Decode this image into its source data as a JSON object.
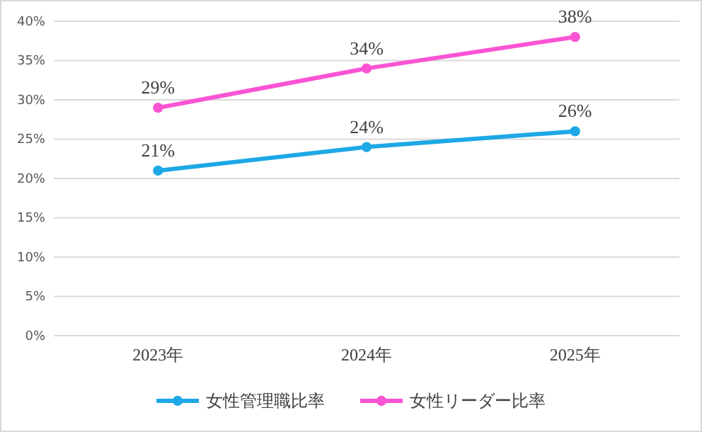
{
  "chart_data": {
    "type": "line",
    "categories": [
      "2023年",
      "2024年",
      "2025年"
    ],
    "series": [
      {
        "name": "女性管理職比率",
        "color": "#1ea8e6",
        "values": [
          21,
          24,
          26
        ],
        "value_labels": [
          "21%",
          "24%",
          "26%"
        ]
      },
      {
        "name": "女性リーダー比率",
        "color": "#fb54d3",
        "values": [
          29,
          34,
          38
        ],
        "value_labels": [
          "29%",
          "34%",
          "38%"
        ]
      }
    ],
    "ylim": [
      0,
      40
    ],
    "yticks": [
      {
        "value": 0,
        "label": "0%"
      },
      {
        "value": 5,
        "label": "5%"
      },
      {
        "value": 10,
        "label": "10%"
      },
      {
        "value": 15,
        "label": "15%"
      },
      {
        "value": 20,
        "label": "20%"
      },
      {
        "value": 25,
        "label": "25%"
      },
      {
        "value": 30,
        "label": "30%"
      },
      {
        "value": 35,
        "label": "35%"
      },
      {
        "value": 40,
        "label": "40%"
      }
    ],
    "grid": "y",
    "legend": "bottom",
    "marker": "circle",
    "line_style": "solid"
  }
}
